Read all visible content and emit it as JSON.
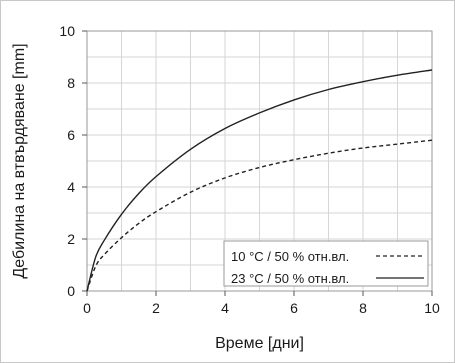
{
  "chart_data": {
    "type": "line",
    "xlabel": "Време [дни]",
    "ylabel": "Дебилина на втвърдяване [mm]",
    "xlim": [
      0,
      10
    ],
    "ylim": [
      0,
      10
    ],
    "xticks": [
      0,
      2,
      4,
      6,
      8,
      10
    ],
    "yticks": [
      0,
      2,
      4,
      6,
      8,
      10
    ],
    "grid": true,
    "legend_position": "bottom-right",
    "series": [
      {
        "name": "10 °C / 50 % отн.вл.",
        "style": "dashed",
        "color": "#222222",
        "x": [
          0,
          0.25,
          0.5,
          1,
          1.5,
          2,
          3,
          4,
          5,
          6,
          7,
          8,
          9,
          10
        ],
        "y": [
          0,
          0.95,
          1.4,
          2.05,
          2.6,
          3.05,
          3.8,
          4.35,
          4.75,
          5.05,
          5.3,
          5.5,
          5.65,
          5.8
        ]
      },
      {
        "name": "23 °C / 50 % отн.вл.",
        "style": "solid",
        "color": "#222222",
        "x": [
          0,
          0.25,
          0.5,
          1,
          1.5,
          2,
          3,
          4,
          5,
          6,
          7,
          8,
          9,
          10
        ],
        "y": [
          0,
          1.3,
          1.95,
          2.95,
          3.75,
          4.4,
          5.45,
          6.25,
          6.85,
          7.35,
          7.75,
          8.05,
          8.3,
          8.5
        ]
      }
    ]
  }
}
